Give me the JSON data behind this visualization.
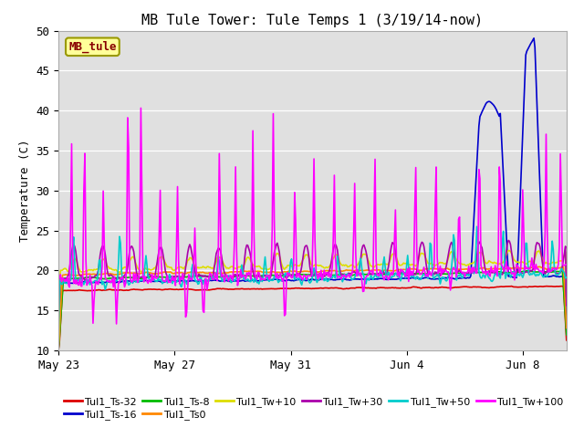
{
  "title": "MB Tule Tower: Tule Temps 1 (3/19/14-now)",
  "ylabel": "Temperature (C)",
  "ylim": [
    10,
    50
  ],
  "yticks": [
    10,
    15,
    20,
    25,
    30,
    35,
    40,
    45,
    50
  ],
  "bg_color": "#e0e0e0",
  "series_order": [
    "Tul1_Ts-32",
    "Tul1_Ts-16",
    "Tul1_Ts-8",
    "Tul1_Ts0",
    "Tul1_Tw+10",
    "Tul1_Tw+30",
    "Tul1_Tw+50",
    "Tul1_Tw+100"
  ],
  "series": {
    "Tul1_Ts-32": {
      "color": "#dd0000",
      "lw": 1.2
    },
    "Tul1_Ts-16": {
      "color": "#0000cc",
      "lw": 1.2
    },
    "Tul1_Ts-8": {
      "color": "#00bb00",
      "lw": 1.2
    },
    "Tul1_Ts0": {
      "color": "#ff8800",
      "lw": 1.2
    },
    "Tul1_Tw+10": {
      "color": "#dddd00",
      "lw": 1.2
    },
    "Tul1_Tw+30": {
      "color": "#aa00aa",
      "lw": 1.2
    },
    "Tul1_Tw+50": {
      "color": "#00cccc",
      "lw": 1.2
    },
    "Tul1_Tw+100": {
      "color": "#ff00ff",
      "lw": 1.2
    }
  },
  "xtick_labels": [
    "May 23",
    "May 27",
    "May 31",
    "Jun 4",
    "Jun 8"
  ],
  "annotation_box": {
    "text": "MB_tule",
    "facecolor": "#ffff99",
    "edgecolor": "#999900",
    "textcolor": "#880000",
    "fontsize": 9,
    "fontweight": "bold"
  },
  "legend_ncol": 6,
  "n_points": 500,
  "n_days": 17.5
}
